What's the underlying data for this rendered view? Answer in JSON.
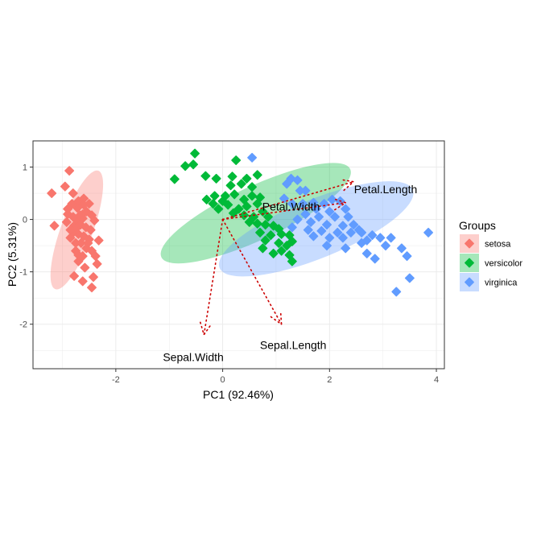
{
  "chart_data": {
    "type": "scatter",
    "title": "",
    "xlabel": "PC1 (92.46%)",
    "ylabel": "PC2 (5.31%)",
    "xlim": [
      -3.55,
      4.15
    ],
    "ylim": [
      -2.85,
      1.5
    ],
    "xticks": [
      -2,
      0,
      2,
      4
    ],
    "yticks": [
      1,
      0,
      -1,
      -2
    ],
    "xtick_labels": [
      "-2",
      "0",
      "2",
      "4"
    ],
    "ytick_labels": [
      "1",
      "0",
      "-1",
      "-2"
    ],
    "grid": true,
    "legend": {
      "title": "Groups",
      "position": "right"
    },
    "series": [
      {
        "name": "setosa",
        "color": "#F8766D",
        "ellipse": {
          "cx": -2.73,
          "cy": -0.2,
          "rx": 1.18,
          "ry": 0.3,
          "angle_deg": -70
        },
        "points": [
          [
            -3.2,
            0.5
          ],
          [
            -3.15,
            -0.12
          ],
          [
            -2.87,
            0.93
          ],
          [
            -2.95,
            0.63
          ],
          [
            -2.8,
            0.5
          ],
          [
            -2.82,
            0.3
          ],
          [
            -2.9,
            0.2
          ],
          [
            -2.7,
            0.35
          ],
          [
            -2.6,
            0.4
          ],
          [
            -2.5,
            0.3
          ],
          [
            -2.72,
            0.22
          ],
          [
            -2.62,
            0.1
          ],
          [
            -2.9,
            0.1
          ],
          [
            -2.8,
            0.05
          ],
          [
            -2.72,
            -0.02
          ],
          [
            -2.62,
            0.02
          ],
          [
            -2.55,
            0.15
          ],
          [
            -2.45,
            0.08
          ],
          [
            -2.4,
            -0.02
          ],
          [
            -2.92,
            -0.05
          ],
          [
            -2.78,
            -0.12
          ],
          [
            -2.66,
            -0.1
          ],
          [
            -2.56,
            -0.15
          ],
          [
            -2.47,
            -0.2
          ],
          [
            -2.8,
            -0.25
          ],
          [
            -2.7,
            -0.28
          ],
          [
            -2.6,
            -0.32
          ],
          [
            -2.5,
            -0.38
          ],
          [
            -2.32,
            -0.4
          ],
          [
            -2.85,
            -0.35
          ],
          [
            -2.75,
            -0.45
          ],
          [
            -2.65,
            -0.45
          ],
          [
            -2.55,
            -0.55
          ],
          [
            -2.45,
            -0.6
          ],
          [
            -2.75,
            -0.6
          ],
          [
            -2.62,
            -0.7
          ],
          [
            -2.38,
            -0.7
          ],
          [
            -2.7,
            -0.8
          ],
          [
            -2.35,
            -0.85
          ],
          [
            -2.58,
            -0.92
          ],
          [
            -2.78,
            -1.08
          ],
          [
            -2.62,
            -1.18
          ],
          [
            -2.42,
            -1.1
          ],
          [
            -2.45,
            -1.3
          ],
          [
            -2.75,
            -0.18
          ],
          [
            -2.85,
            -0.2
          ],
          [
            -2.67,
            0.08
          ],
          [
            -2.52,
            -0.45
          ],
          [
            -2.7,
            -0.68
          ],
          [
            -2.6,
            0.28
          ]
        ]
      },
      {
        "name": "versicolor",
        "color": "#00BA38",
        "ellipse": {
          "cx": 0.62,
          "cy": 0.12,
          "rx": 1.95,
          "ry": 0.5,
          "angle_deg": -25
        },
        "points": [
          [
            -0.52,
            1.26
          ],
          [
            -0.55,
            1.05
          ],
          [
            -0.7,
            1.02
          ],
          [
            -0.9,
            0.77
          ],
          [
            -0.32,
            0.83
          ],
          [
            -0.12,
            0.78
          ],
          [
            0.25,
            1.13
          ],
          [
            0.18,
            0.82
          ],
          [
            0.45,
            0.78
          ],
          [
            0.65,
            0.85
          ],
          [
            0.15,
            0.65
          ],
          [
            0.35,
            0.68
          ],
          [
            0.55,
            0.62
          ],
          [
            -0.3,
            0.38
          ],
          [
            -0.18,
            0.3
          ],
          [
            -0.08,
            0.2
          ],
          [
            0.05,
            0.45
          ],
          [
            0.22,
            0.48
          ],
          [
            0.4,
            0.38
          ],
          [
            0.55,
            0.45
          ],
          [
            0.7,
            0.42
          ],
          [
            0.1,
            0.28
          ],
          [
            0.3,
            0.2
          ],
          [
            0.45,
            0.25
          ],
          [
            0.65,
            0.3
          ],
          [
            0.2,
            0.12
          ],
          [
            0.4,
            0.08
          ],
          [
            0.58,
            0.05
          ],
          [
            0.75,
            0.15
          ],
          [
            0.85,
            0.05
          ],
          [
            0.5,
            -0.05
          ],
          [
            0.65,
            -0.08
          ],
          [
            0.8,
            -0.1
          ],
          [
            0.95,
            -0.12
          ],
          [
            1.05,
            -0.18
          ],
          [
            0.7,
            -0.25
          ],
          [
            0.9,
            -0.3
          ],
          [
            1.1,
            -0.28
          ],
          [
            1.25,
            -0.3
          ],
          [
            0.8,
            -0.4
          ],
          [
            1.05,
            -0.45
          ],
          [
            1.2,
            -0.5
          ],
          [
            0.75,
            -0.55
          ],
          [
            0.95,
            -0.65
          ],
          [
            1.3,
            -0.42
          ],
          [
            1.1,
            -0.6
          ],
          [
            1.25,
            -0.68
          ],
          [
            1.3,
            -0.8
          ],
          [
            -0.15,
            0.45
          ],
          [
            0.0,
            0.35
          ]
        ]
      },
      {
        "name": "virginica",
        "color": "#619CFF",
        "ellipse": {
          "cx": 1.75,
          "cy": -0.18,
          "rx": 1.95,
          "ry": 0.55,
          "angle_deg": -22
        },
        "points": [
          [
            0.55,
            1.18
          ],
          [
            1.28,
            0.78
          ],
          [
            1.4,
            0.75
          ],
          [
            1.2,
            0.68
          ],
          [
            1.55,
            0.55
          ],
          [
            1.45,
            0.55
          ],
          [
            1.15,
            0.4
          ],
          [
            1.3,
            0.3
          ],
          [
            1.5,
            0.3
          ],
          [
            1.7,
            0.32
          ],
          [
            1.9,
            0.3
          ],
          [
            2.05,
            0.38
          ],
          [
            2.2,
            0.35
          ],
          [
            1.75,
            0.2
          ],
          [
            2.0,
            0.15
          ],
          [
            2.3,
            0.2
          ],
          [
            1.55,
            0.1
          ],
          [
            1.8,
            0.05
          ],
          [
            2.1,
            0.05
          ],
          [
            2.35,
            0.05
          ],
          [
            1.4,
            0.0
          ],
          [
            1.65,
            -0.05
          ],
          [
            1.95,
            -0.1
          ],
          [
            2.25,
            -0.12
          ],
          [
            2.45,
            -0.1
          ],
          [
            1.3,
            -0.15
          ],
          [
            1.6,
            -0.2
          ],
          [
            1.85,
            -0.22
          ],
          [
            2.15,
            -0.25
          ],
          [
            2.4,
            -0.25
          ],
          [
            2.6,
            -0.25
          ],
          [
            1.7,
            -0.32
          ],
          [
            2.0,
            -0.35
          ],
          [
            2.25,
            -0.35
          ],
          [
            2.8,
            -0.3
          ],
          [
            2.95,
            -0.35
          ],
          [
            3.15,
            -0.35
          ],
          [
            1.95,
            -0.5
          ],
          [
            2.3,
            -0.55
          ],
          [
            2.6,
            -0.45
          ],
          [
            3.05,
            -0.5
          ],
          [
            3.35,
            -0.55
          ],
          [
            2.7,
            -0.65
          ],
          [
            2.85,
            -0.75
          ],
          [
            3.45,
            -0.7
          ],
          [
            3.5,
            -1.12
          ],
          [
            3.85,
            -0.25
          ],
          [
            3.25,
            -1.38
          ],
          [
            2.55,
            -0.2
          ],
          [
            2.7,
            -0.4
          ]
        ]
      }
    ],
    "arrows": [
      {
        "name": "Sepal.Width",
        "x": -0.35,
        "y": -2.2,
        "label_x": -0.55,
        "label_y": -2.63
      },
      {
        "name": "Sepal.Length",
        "x": 1.1,
        "y": -2.0,
        "label_x": 1.32,
        "label_y": -2.4
      },
      {
        "name": "Petal.Length",
        "x": 2.45,
        "y": 0.72,
        "label_x": 3.05,
        "label_y": 0.58
      },
      {
        "name": "Petal.Width",
        "x": 2.3,
        "y": 0.32,
        "label_x": 1.28,
        "label_y": 0.25
      }
    ],
    "arrow_origin": [
      0,
      0
    ],
    "arrow_color": "#CC0000",
    "panel_border_color": "#333333",
    "grid_color": "#EBEBEB"
  }
}
